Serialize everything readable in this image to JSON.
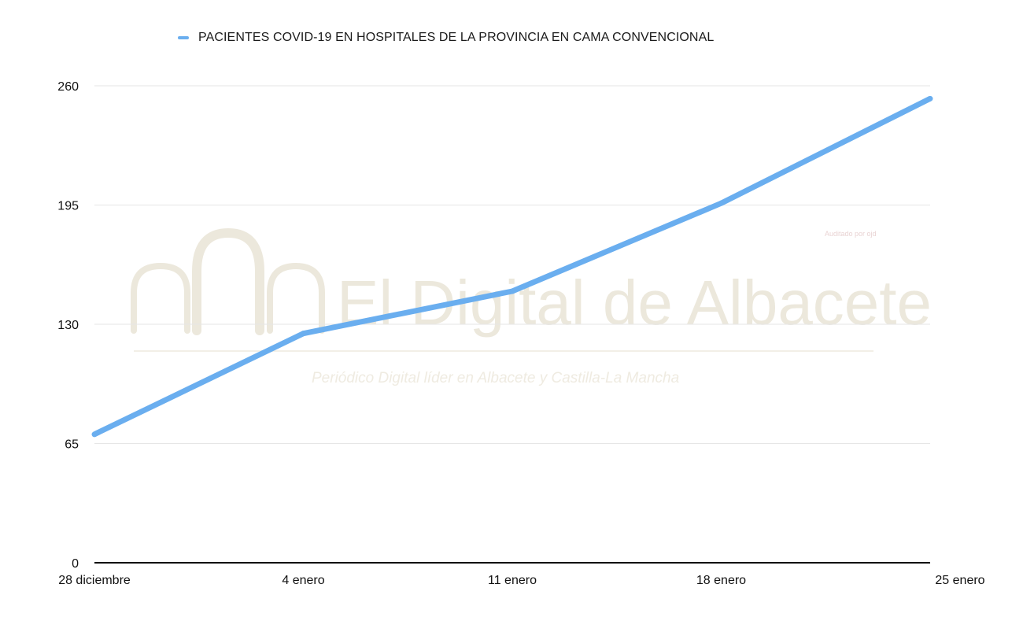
{
  "chart_data": {
    "type": "line",
    "categories": [
      "28 diciembre",
      "4 enero",
      "11 enero",
      "18 enero",
      "25 enero"
    ],
    "series": [
      {
        "name": "PACIENTES COVID-19 EN HOSPITALES DE LA PROVINCIA EN CAMA CONVENCIONAL",
        "values": [
          70,
          125,
          148,
          196,
          253
        ],
        "color": "#6aaeef"
      }
    ],
    "y_ticks": [
      "0",
      "65",
      "130",
      "195",
      "260"
    ],
    "ylim": [
      0,
      260
    ],
    "grid": "horizontal",
    "legend": "top"
  },
  "watermark": {
    "title": "El Digital de Albacete",
    "subtitle": "Periódico Digital líder en Albacete y Castilla-La Mancha",
    "audit": "Auditado por ojd",
    "color": "#ece8dc"
  }
}
